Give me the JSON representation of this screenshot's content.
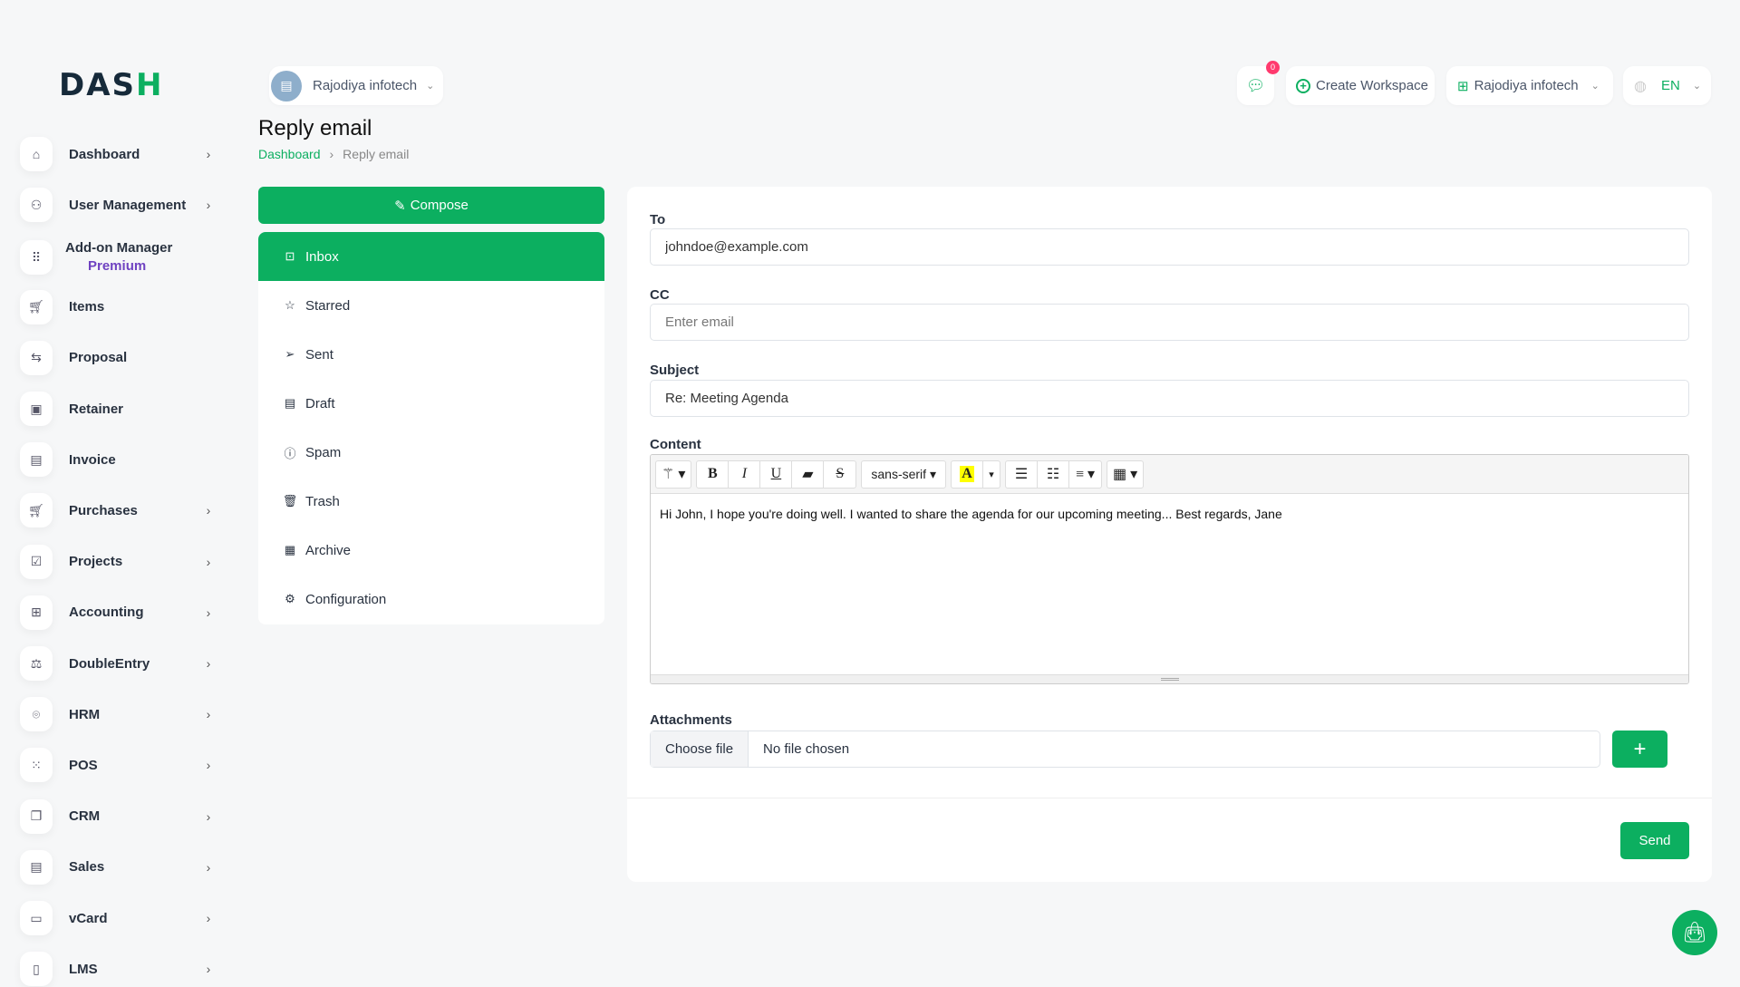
{
  "logo": "DASH",
  "sidebar": {
    "items": [
      {
        "label": "Dashboard",
        "icon": "home-icon",
        "chev": true
      },
      {
        "label": "User Management",
        "icon": "users-icon",
        "chev": true
      },
      {
        "label": "Add-on Manager",
        "sub": "Premium",
        "icon": "apps-icon",
        "chev": false
      },
      {
        "label": "Items",
        "icon": "cart-icon",
        "chev": false
      },
      {
        "label": "Proposal",
        "icon": "swap-icon",
        "chev": false
      },
      {
        "label": "Retainer",
        "icon": "save-icon",
        "chev": false
      },
      {
        "label": "Invoice",
        "icon": "file-icon",
        "chev": false
      },
      {
        "label": "Purchases",
        "icon": "cart-icon",
        "chev": true
      },
      {
        "label": "Projects",
        "icon": "checkbox-icon",
        "chev": true
      },
      {
        "label": "Accounting",
        "icon": "grid-plus-icon",
        "chev": true
      },
      {
        "label": "DoubleEntry",
        "icon": "scale-icon",
        "chev": true
      },
      {
        "label": "HRM",
        "icon": "user-focus-icon",
        "chev": true
      },
      {
        "label": "POS",
        "icon": "dots-grid-icon",
        "chev": true
      },
      {
        "label": "CRM",
        "icon": "layers-icon",
        "chev": true
      },
      {
        "label": "Sales",
        "icon": "file-icon",
        "chev": true
      },
      {
        "label": "vCard",
        "icon": "card-icon",
        "chev": true
      },
      {
        "label": "LMS",
        "icon": "book-icon",
        "chev": true
      }
    ]
  },
  "header": {
    "workspace": "Rajodiya infotech",
    "notifications": "0",
    "create_workspace": "Create Workspace",
    "company": "Rajodiya infotech",
    "language": "EN"
  },
  "page": {
    "title": "Reply email",
    "breadcrumb": [
      "Dashboard",
      "Reply email"
    ]
  },
  "mail_menu": {
    "compose": "Compose",
    "items": [
      {
        "label": "Inbox",
        "icon": "inbox-icon",
        "active": true
      },
      {
        "label": "Starred",
        "icon": "star-icon"
      },
      {
        "label": "Sent",
        "icon": "send-icon"
      },
      {
        "label": "Draft",
        "icon": "file-icon"
      },
      {
        "label": "Spam",
        "icon": "alert-icon"
      },
      {
        "label": "Trash",
        "icon": "trash-icon"
      },
      {
        "label": "Archive",
        "icon": "archive-icon"
      },
      {
        "label": "Configuration",
        "icon": "gear-icon"
      }
    ]
  },
  "form": {
    "to_label": "To",
    "to_value": "johndoe@example.com",
    "cc_label": "CC",
    "cc_placeholder": "Enter email",
    "subject_label": "Subject",
    "subject_value": "Re: Meeting Agenda",
    "content_label": "Content",
    "font": "sans-serif",
    "content": "Hi John, I hope you're doing well. I wanted to share the agenda for our upcoming meeting... Best regards, Jane",
    "attachments_label": "Attachments",
    "choose_file": "Choose file",
    "no_file": "No file chosen",
    "send": "Send"
  },
  "colors": {
    "accent": "#0caf60",
    "badge": "#ff3a6e",
    "premium": "#6f42c1"
  }
}
